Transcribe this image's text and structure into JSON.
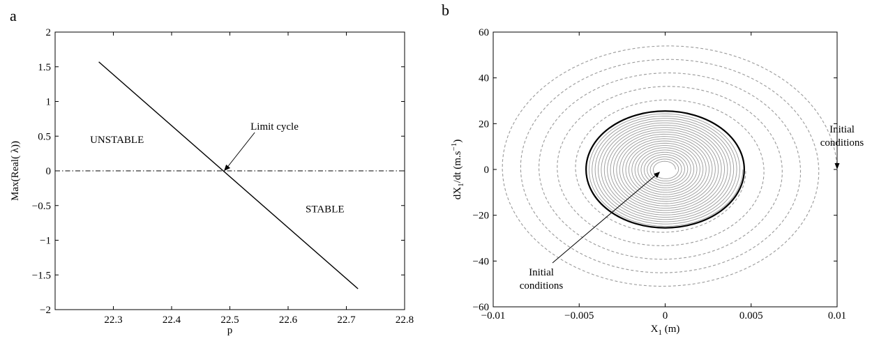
{
  "panels": {
    "a": {
      "label": "a"
    },
    "b": {
      "label": "b"
    }
  },
  "chart_data": [
    {
      "type": "line",
      "panel": "a",
      "xlabel": "p",
      "ylabel": "Max(Real( λ))",
      "xlim": [
        22.2,
        22.8
      ],
      "ylim": [
        -2,
        2
      ],
      "xticks": [
        "22.3",
        "22.4",
        "22.5",
        "22.6",
        "22.7",
        "22.8"
      ],
      "yticks": [
        "−2",
        "−1.5",
        "−1",
        "−0.5",
        "0",
        "0.5",
        "1",
        "1.5",
        "2"
      ],
      "series": [
        {
          "style": "solid",
          "x": [
            22.275,
            22.72
          ],
          "y": [
            1.57,
            -1.7
          ]
        },
        {
          "style": "dash-dot",
          "x": [
            22.2,
            22.8
          ],
          "y": [
            0,
            0
          ]
        }
      ],
      "annotations": [
        {
          "text": "Limit cycle",
          "x": 22.49,
          "y": 0,
          "arrow": true
        },
        {
          "text": "UNSTABLE",
          "x": 22.26,
          "y": 0.4
        },
        {
          "text": "STABLE",
          "x": 22.63,
          "y": -0.6
        }
      ],
      "grid": false
    },
    {
      "type": "line",
      "panel": "b",
      "xlabel": "X",
      "xlabel_sub": "1",
      "xlabel_unit": " (m)",
      "ylabel": "dX",
      "ylabel_sub": "1",
      "ylabel_mid": "/dt (m.s",
      "ylabel_sup": "−1",
      "ylabel_end": ")",
      "xlim": [
        -0.01,
        0.01
      ],
      "ylim": [
        -60,
        60
      ],
      "xticks": [
        "−0.01",
        "−0.005",
        "0",
        "0.005",
        "0.01"
      ],
      "yticks": [
        "−60",
        "−40",
        "−20",
        "0",
        "20",
        "40",
        "60"
      ],
      "limit_cycle": {
        "amplitude_x": 0.0046,
        "amplitude_v": 25.5,
        "color": "#000000"
      },
      "series": [
        {
          "style": "dashed",
          "color": "#999999",
          "start": [
            0.01,
            0
          ],
          "spiral": "inward",
          "to_amplitude_x": 0.0046
        },
        {
          "style": "solid",
          "color": "#999999",
          "start": [
            0.0006,
            0
          ],
          "spiral": "outward",
          "to_amplitude_x": 0.0046
        }
      ],
      "annotations": [
        {
          "text": "Initial conditions",
          "lines": [
            "Initial",
            "conditions"
          ],
          "x": 0.01,
          "y": 0,
          "arrow": true
        },
        {
          "text": "Initial conditions",
          "lines": [
            "Initial",
            "conditions"
          ],
          "x": -0.0003,
          "y": -1,
          "arrow": true
        }
      ],
      "grid": false
    }
  ]
}
